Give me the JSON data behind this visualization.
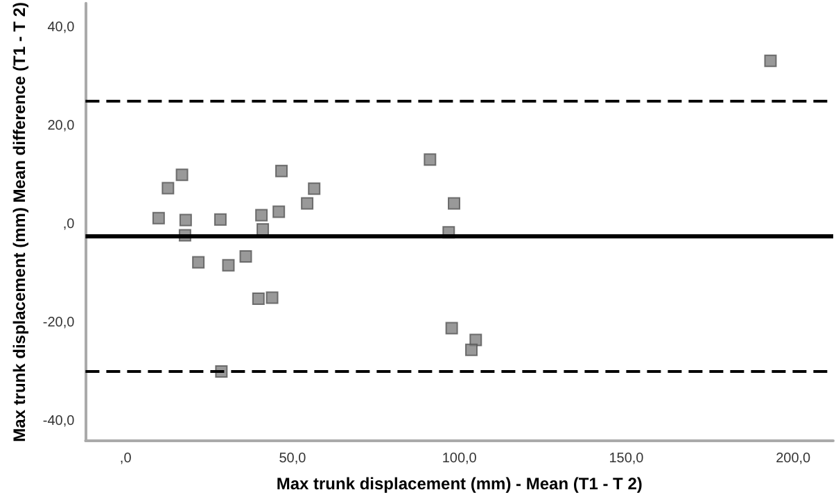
{
  "chart_data": {
    "type": "scatter",
    "xlabel": "Max trunk displacement (mm) - Mean (T1 - T 2)",
    "ylabel": "Max trunk displacement (mm) Mean difference (T1 - T 2)",
    "series": [
      {
        "color": "#808080",
        "x": [
          9.9,
          12.7,
          16.9,
          18.0,
          17.8,
          21.8,
          28.4,
          28.7,
          30.8,
          36.0,
          39.8,
          40.7,
          41.1,
          43.9,
          45.9,
          46.7,
          54.4,
          56.5,
          91.2,
          98.4,
          96.8,
          97.7,
          104.9,
          103.6,
          193.2
        ],
        "values": [
          1.3,
          7.4,
          10.1,
          0.9,
          -2.2,
          -7.7,
          1.0,
          -29.9,
          -8.3,
          -6.5,
          -15.1,
          1.9,
          -1.0,
          -14.9,
          2.6,
          10.9,
          4.3,
          7.3,
          13.2,
          4.3,
          -1.6,
          -21.1,
          -23.5,
          -25.5,
          33.3
        ]
      }
    ],
    "marker": "square",
    "grid": false,
    "xlim": [
      -12,
      212
    ],
    "ylim": [
      -44,
      45
    ],
    "xticks": [
      {
        "value": 0,
        "label": ",0"
      },
      {
        "value": 50,
        "label": "50,0"
      },
      {
        "value": 100,
        "label": "100,0"
      },
      {
        "value": 150,
        "label": "150,0"
      },
      {
        "value": 200,
        "label": "200,0"
      }
    ],
    "yticks": [
      {
        "value": -40,
        "label": "-40,0"
      },
      {
        "value": -20,
        "label": "-20,0"
      },
      {
        "value": 0,
        "label": ",0"
      },
      {
        "value": 20,
        "label": "20,0"
      },
      {
        "value": 40,
        "label": "40,0"
      }
    ],
    "ref_lines": [
      {
        "axis": "y",
        "value": -2.4,
        "color": "#000000",
        "line_style": "solid"
      },
      {
        "axis": "y",
        "value": 25.1,
        "color": "#000000",
        "line_style": "dashed"
      },
      {
        "axis": "y",
        "value": -29.9,
        "color": "#000000",
        "line_style": "dashed"
      }
    ]
  }
}
